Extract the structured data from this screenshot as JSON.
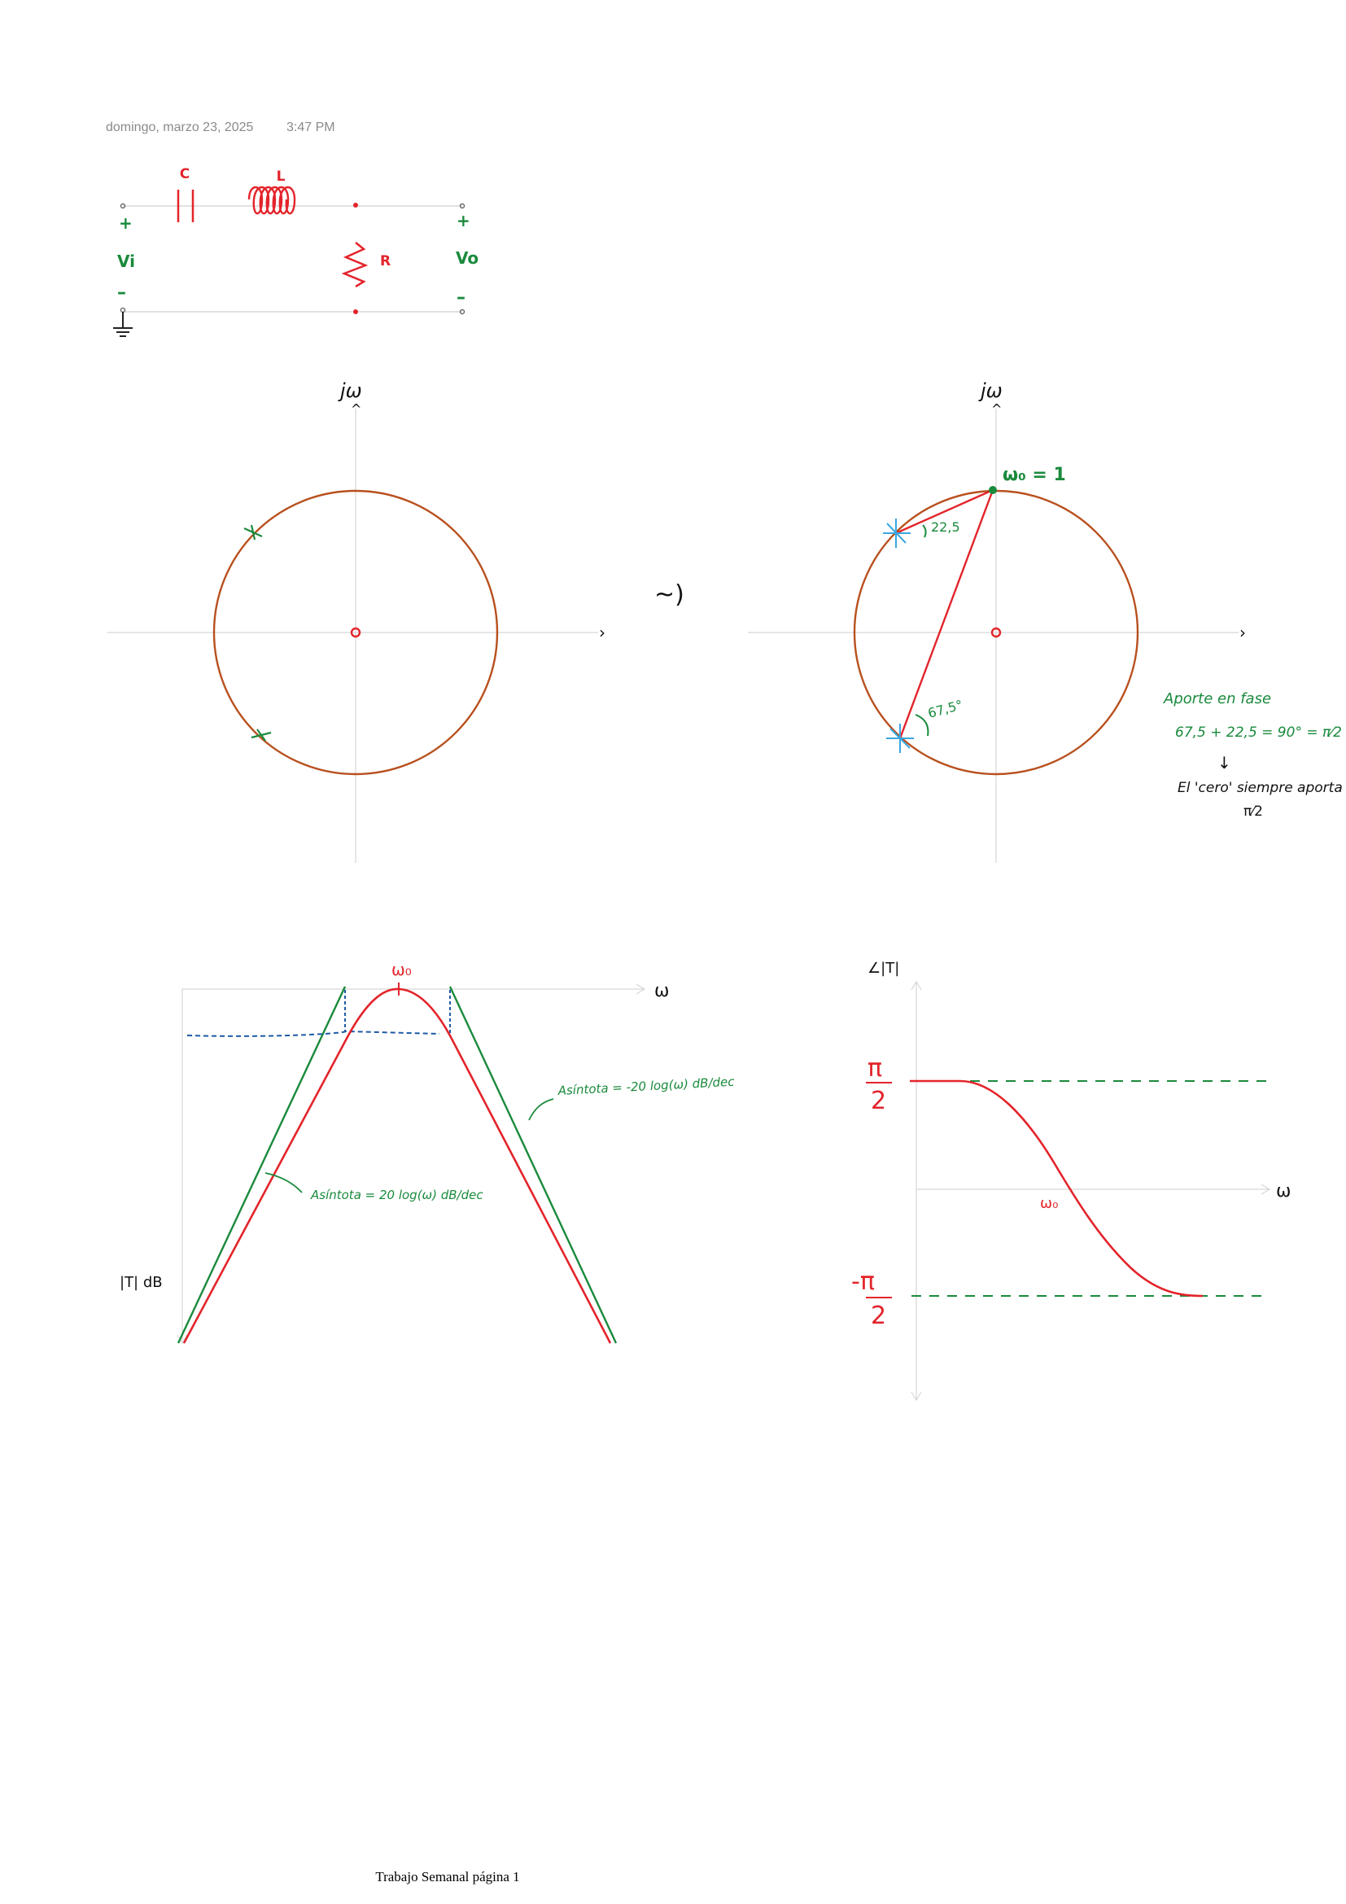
{
  "header": {
    "date": "domingo, marzo 23, 2025",
    "time": "3:47 PM"
  },
  "colors": {
    "red": "#e3242b",
    "green": "#1a8a3c",
    "orange": "#b8501e",
    "blue": "#1f5aa6",
    "lightblue": "#39a6e0",
    "axis": "#d6d6d6"
  },
  "circuit": {
    "capacitor_label": "C",
    "inductor_label": "L",
    "resistor_label": "R",
    "plus_in": "+",
    "plus_out": "+",
    "vin": "Vi",
    "vout": "Vo",
    "minus_in": "–",
    "minus_out": "–"
  },
  "pz_left": {
    "axis_label": "jω",
    "up_arrow": "^",
    "right_arrow": "›"
  },
  "pz_right": {
    "axis_label": "jω",
    "up_arrow": "^",
    "right_arrow": "›",
    "w0_label": "ω₀ = 1",
    "angle_small": "22,5",
    "angle_large": "67,5°"
  },
  "arrow_between": "~)",
  "notes": {
    "title": "Aporte en fase",
    "equation": "67,5 + 22,5 = 90° = π⁄2",
    "down_arrow": "↓",
    "statement": "El 'cero' siempre aporta",
    "pi_half": "π⁄2"
  },
  "magnitude_plot": {
    "w0_label": "ω₀",
    "x_label": "ω",
    "y_label": "|T| dB",
    "asym_left": "Asíntota = 20 log(ω) dB/dec",
    "asym_right": "Asíntota = -20 log(ω) dB/dec"
  },
  "phase_plot": {
    "y_label": "∠|T|",
    "x_label": "ω",
    "w0_label": "ω₀",
    "pi_top": "π",
    "two_top": "2",
    "pi_bottom": "-π",
    "two_bottom": "2"
  },
  "footer": "Trabajo Semanal página 1"
}
